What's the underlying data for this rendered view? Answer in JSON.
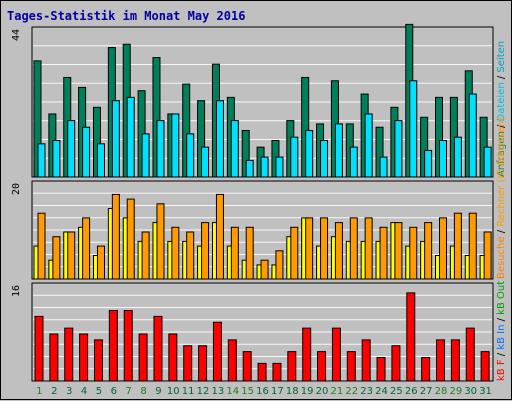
{
  "title": "Tages-Statistik im Monat May 2016",
  "colors": {
    "background": "#C0C0C0",
    "panel": "#C0C0C0",
    "grid": "#FFFFFF",
    "title": "#0000A0",
    "weekday_label": "#006633",
    "weekend_label": "#208020",
    "anfragen": "#00805A",
    "dateien": "#00E0FF",
    "rechner": "#FFFF00",
    "besuche": "#FF9A00",
    "kb_in": "#FF0000"
  },
  "legend": {
    "panel1": [
      {
        "text": "Anfragen",
        "color": "#00805A"
      },
      {
        "text": " / ",
        "color": "#000000"
      },
      {
        "text": "Dateien",
        "color": "#00C0E0"
      },
      {
        "text": " / ",
        "color": "#000000"
      },
      {
        "text": "Seiten",
        "color": "#00A0C0"
      }
    ],
    "panel2": [
      {
        "text": "Besuche",
        "color": "#FF8000"
      },
      {
        "text": " / ",
        "color": "#000000"
      },
      {
        "text": "Rechner (IP-Adressen)",
        "color": "#FF9900"
      }
    ],
    "panel3": [
      {
        "text": "kB F",
        "color": "#FF0000"
      },
      {
        "text": " / ",
        "color": "#000000"
      },
      {
        "text": "kB In",
        "color": "#0070FF"
      },
      {
        "text": " / ",
        "color": "#000000"
      },
      {
        "text": "kB Out",
        "color": "#00A000"
      }
    ]
  },
  "chart_data": [
    {
      "type": "bar",
      "title": "Tages-Statistik im Monat May 2016",
      "categories": [
        "1",
        "2",
        "3",
        "4",
        "5",
        "6",
        "7",
        "8",
        "9",
        "10",
        "11",
        "12",
        "13",
        "14",
        "15",
        "16",
        "17",
        "18",
        "19",
        "20",
        "21",
        "22",
        "23",
        "24",
        "25",
        "26",
        "27",
        "28",
        "29",
        "30",
        "31"
      ],
      "weekend": [
        "1",
        "7",
        "8",
        "14",
        "15",
        "21",
        "22",
        "28",
        "29"
      ],
      "ymax_label": "44",
      "ylim": [
        0,
        44
      ],
      "series": [
        {
          "name": "Anfragen",
          "values": [
            35,
            19,
            30,
            27,
            21,
            39,
            40,
            26,
            36,
            19,
            28,
            23,
            34,
            24,
            14,
            9,
            11,
            17,
            30,
            16,
            29,
            16,
            25,
            15,
            21,
            46,
            18,
            24,
            24,
            32,
            18
          ]
        },
        {
          "name": "Dateien",
          "values": [
            10,
            11,
            17,
            15,
            10,
            23,
            24,
            13,
            17,
            19,
            13,
            9,
            23,
            17,
            5,
            6,
            6,
            12,
            14,
            11,
            16,
            9,
            19,
            6,
            17,
            29,
            8,
            11,
            12,
            25,
            9
          ]
        }
      ]
    },
    {
      "type": "bar",
      "ymax_label": "20",
      "ylim": [
        0,
        20
      ],
      "series": [
        {
          "name": "Rechner (IP-Adressen)",
          "values": [
            7,
            4,
            10,
            11,
            5,
            15,
            13,
            8,
            12,
            8,
            8,
            7,
            12,
            7,
            4,
            3,
            3,
            9,
            13,
            7,
            9,
            8,
            8,
            8,
            12,
            7,
            8,
            5,
            7,
            5,
            5
          ]
        },
        {
          "name": "Besuche",
          "values": [
            14,
            9,
            10,
            13,
            7,
            18,
            17,
            10,
            16,
            11,
            10,
            12,
            18,
            11,
            11,
            4,
            6,
            11,
            13,
            13,
            12,
            13,
            13,
            11,
            12,
            11,
            12,
            13,
            14,
            14,
            10
          ]
        }
      ]
    },
    {
      "type": "bar",
      "ymax_label": "16",
      "ylim": [
        0,
        16
      ],
      "series": [
        {
          "name": "kB F",
          "values": [
            11,
            8,
            9,
            8,
            7,
            12,
            12,
            8,
            11,
            8,
            6,
            6,
            10,
            7,
            5,
            3,
            3,
            5,
            9,
            5,
            9,
            5,
            7,
            4,
            6,
            15,
            4,
            7,
            7,
            9,
            5
          ]
        }
      ]
    }
  ]
}
